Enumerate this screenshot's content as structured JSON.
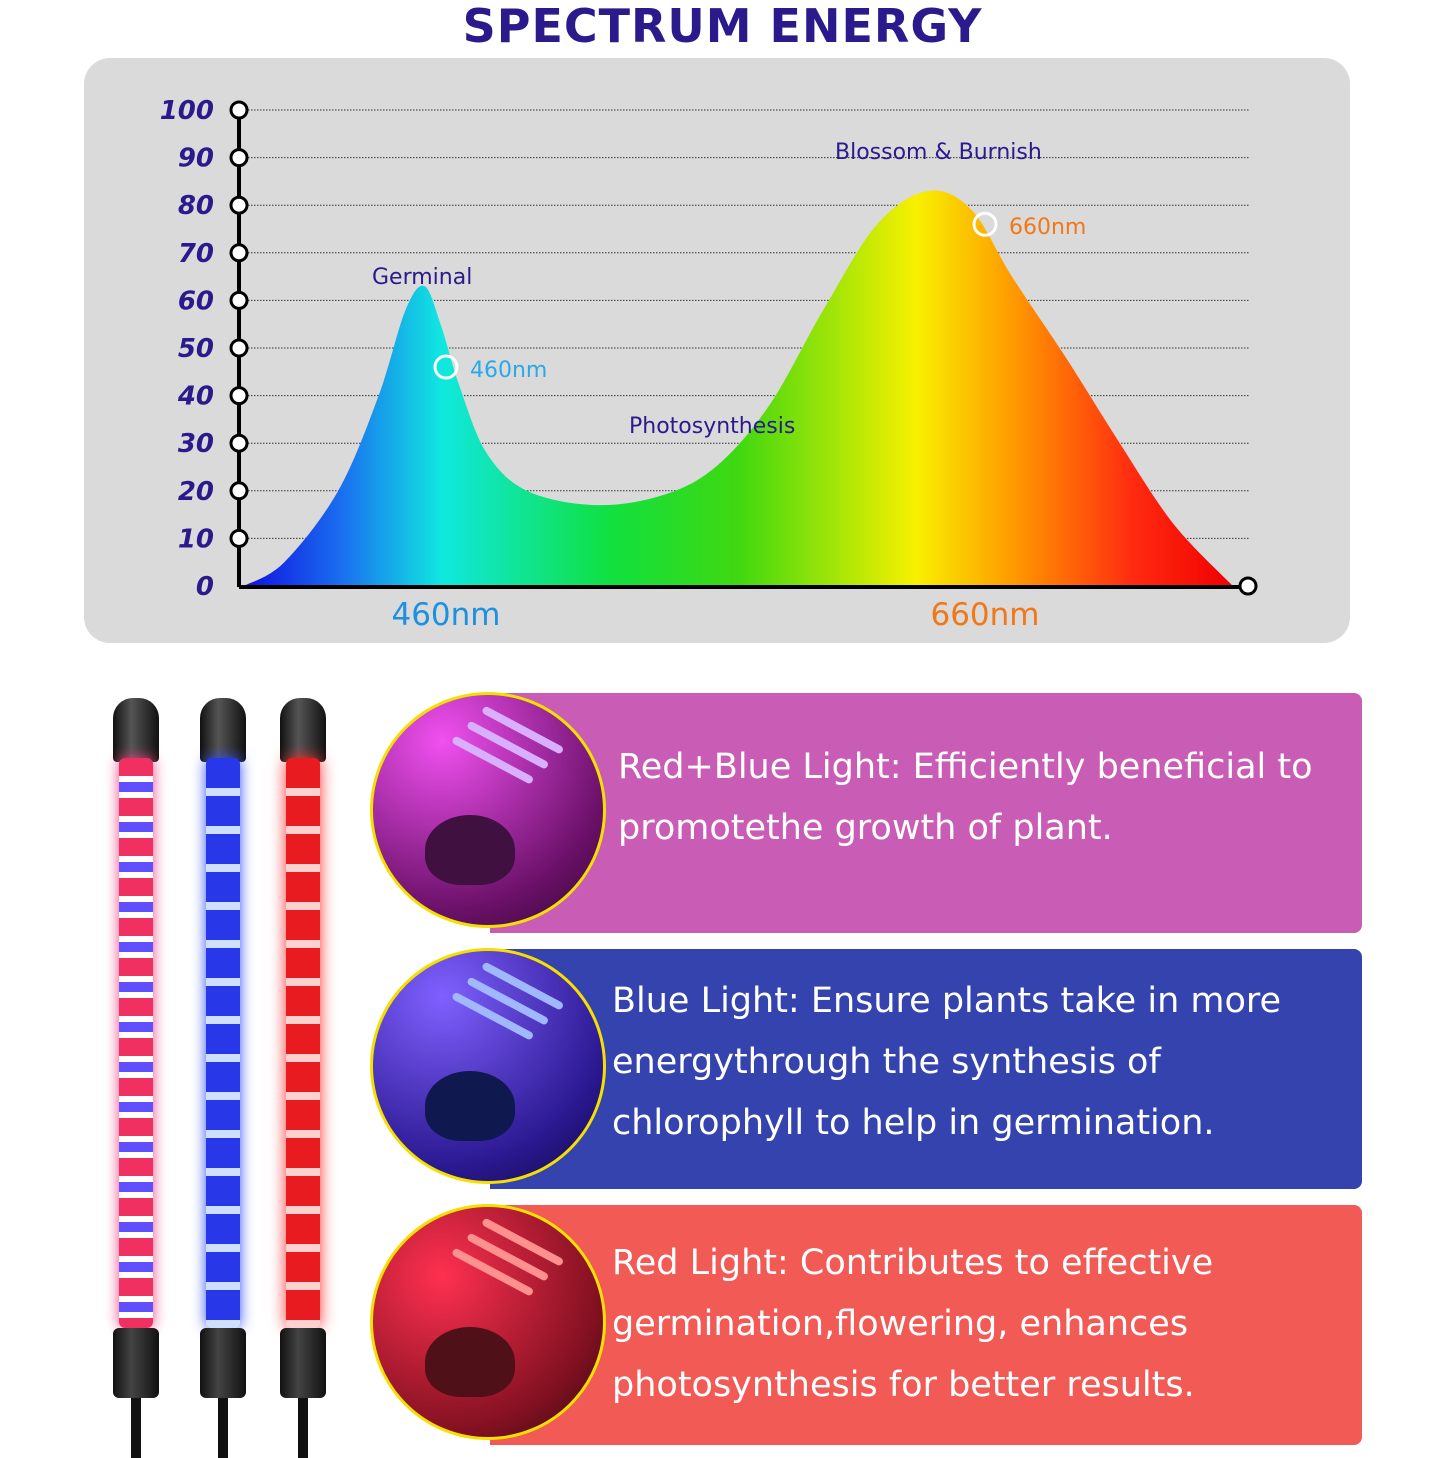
{
  "title": "SPECTRUM ENERGY",
  "chart_data": {
    "type": "area",
    "title": "SPECTRUM ENERGY",
    "xlabel": "",
    "ylabel": "",
    "ylim": [
      0,
      100
    ],
    "yticks": [
      "0",
      "10",
      "20",
      "30",
      "40",
      "50",
      "60",
      "70",
      "80",
      "90",
      "100"
    ],
    "xtick_labels": [
      {
        "x": 460,
        "label": "460nm",
        "color": "#1e90e0"
      },
      {
        "x": 660,
        "label": "660nm",
        "color": "#f07818"
      }
    ],
    "grid": true,
    "fill": "rainbow gradient (blue to red)",
    "x": [
      385,
      400,
      420,
      435,
      445,
      452,
      458,
      465,
      475,
      490,
      515,
      540,
      560,
      580,
      600,
      620,
      639,
      655,
      670,
      690,
      710,
      730,
      752
    ],
    "y": [
      0,
      5,
      20,
      40,
      58,
      63,
      55,
      42,
      28,
      20,
      17,
      19,
      25,
      38,
      58,
      76,
      83,
      79,
      65,
      48,
      30,
      13,
      0
    ],
    "markers": [
      {
        "x": 460,
        "y": 46,
        "label": "460nm",
        "color": "#2aa8e8"
      },
      {
        "x": 660,
        "y": 76,
        "label": "660nm",
        "color": "#f07818"
      }
    ],
    "annotations": [
      "Germinal",
      "Photosynthesis",
      "Blossom & Burnish"
    ]
  },
  "panels": [
    {
      "text": "Red+Blue Light: Efficiently beneficial to promotethe growth of plant.",
      "color": "#c95db6"
    },
    {
      "text": "Blue Light: Ensure plants take in more energythrough the synthesis of chlorophyll to help in germination.",
      "color": "#3443ad"
    },
    {
      "text": "Red Light: Contributes to effective germination,flowering, enhances photosynthesis for better results.",
      "color": "#f15a55"
    }
  ]
}
